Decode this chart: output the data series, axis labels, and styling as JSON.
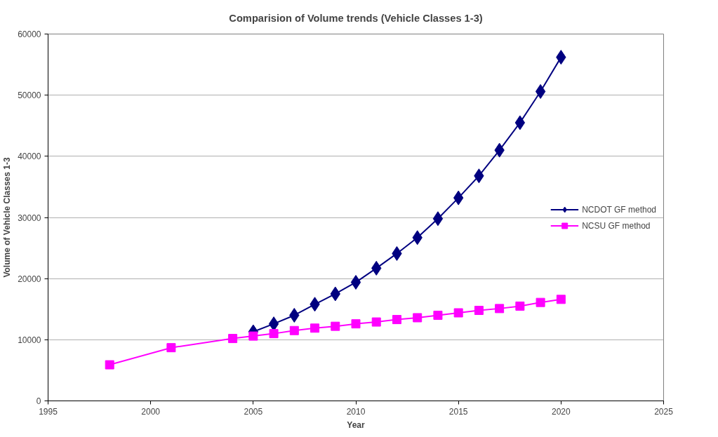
{
  "chart_data": {
    "type": "line",
    "title": "Comparision of Volume trends (Vehicle Classes 1-3)",
    "xlabel": "Year",
    "ylabel": "Volume of Vehicle Classes 1-3",
    "xlim": [
      1995,
      2025
    ],
    "xticks": [
      1995,
      2000,
      2005,
      2010,
      2015,
      2020,
      2025
    ],
    "ylim": [
      0,
      60000
    ],
    "yticks": [
      0,
      10000,
      20000,
      30000,
      40000,
      50000,
      60000
    ],
    "grid": "y",
    "legend": "right",
    "series": [
      {
        "name": "NCDOT GF method",
        "color": "#000080",
        "marker": "diamond",
        "x": [
          2005,
          2006,
          2007,
          2008,
          2009,
          2010,
          2011,
          2012,
          2013,
          2014,
          2015,
          2016,
          2017,
          2018,
          2019,
          2020
        ],
        "values": [
          11300,
          12600,
          14000,
          15800,
          17500,
          19400,
          21700,
          24100,
          26700,
          29800,
          33200,
          36800,
          41000,
          45500,
          50600,
          56200
        ]
      },
      {
        "name": "NCSU GF method",
        "color": "#ff00ff",
        "marker": "square",
        "x": [
          1998,
          2001,
          2004,
          2005,
          2006,
          2007,
          2008,
          2009,
          2010,
          2011,
          2012,
          2013,
          2014,
          2015,
          2016,
          2017,
          2018,
          2019,
          2020
        ],
        "values": [
          5900,
          8700,
          10200,
          10600,
          11000,
          11500,
          11900,
          12200,
          12600,
          12900,
          13300,
          13600,
          14000,
          14400,
          14800,
          15100,
          15500,
          16100,
          16600
        ]
      }
    ]
  }
}
